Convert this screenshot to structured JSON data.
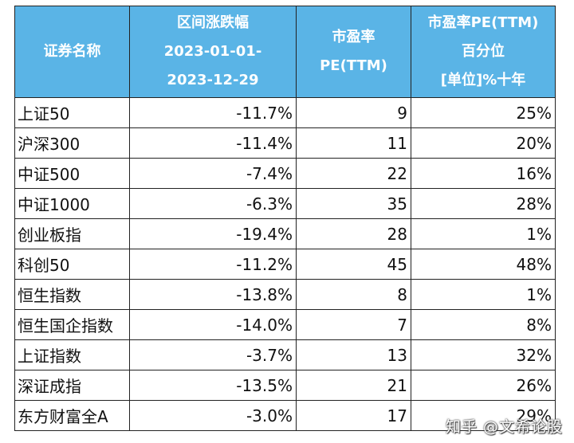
{
  "table": {
    "headers": [
      [
        "证券名称"
      ],
      [
        "区间涨跌幅",
        "2023-01-01-",
        "2023-12-29"
      ],
      [
        "市盈率",
        "PE(TTM)"
      ],
      [
        "市盈率PE(TTM)",
        "百分位",
        "[单位]%十年"
      ]
    ],
    "rows": [
      {
        "name": "上证50",
        "change": "-11.7%",
        "pe": "9",
        "pct": "25%"
      },
      {
        "name": "沪深300",
        "change": "-11.4%",
        "pe": "11",
        "pct": "20%"
      },
      {
        "name": "中证500",
        "change": "-7.4%",
        "pe": "22",
        "pct": "16%"
      },
      {
        "name": "中证1000",
        "change": "-6.3%",
        "pe": "35",
        "pct": "28%"
      },
      {
        "name": "创业板指",
        "change": "-19.4%",
        "pe": "28",
        "pct": "1%"
      },
      {
        "name": "科创50",
        "change": "-11.2%",
        "pe": "45",
        "pct": "48%"
      },
      {
        "name": "恒生指数",
        "change": "-13.8%",
        "pe": "8",
        "pct": "1%"
      },
      {
        "name": "恒生国企指数",
        "change": "-14.0%",
        "pe": "7",
        "pct": "8%"
      },
      {
        "name": "上证指数",
        "change": "-3.7%",
        "pe": "13",
        "pct": "32%"
      },
      {
        "name": "深证成指",
        "change": "-13.5%",
        "pe": "21",
        "pct": "26%"
      },
      {
        "name": "东方财富全A",
        "change": "-3.0%",
        "pe": "17",
        "pct": "29%"
      }
    ]
  },
  "watermark": "知乎 @文希论股",
  "colors": {
    "header_bg": "#5ab4e6",
    "header_text": "#ffffff",
    "border": "#222222"
  }
}
